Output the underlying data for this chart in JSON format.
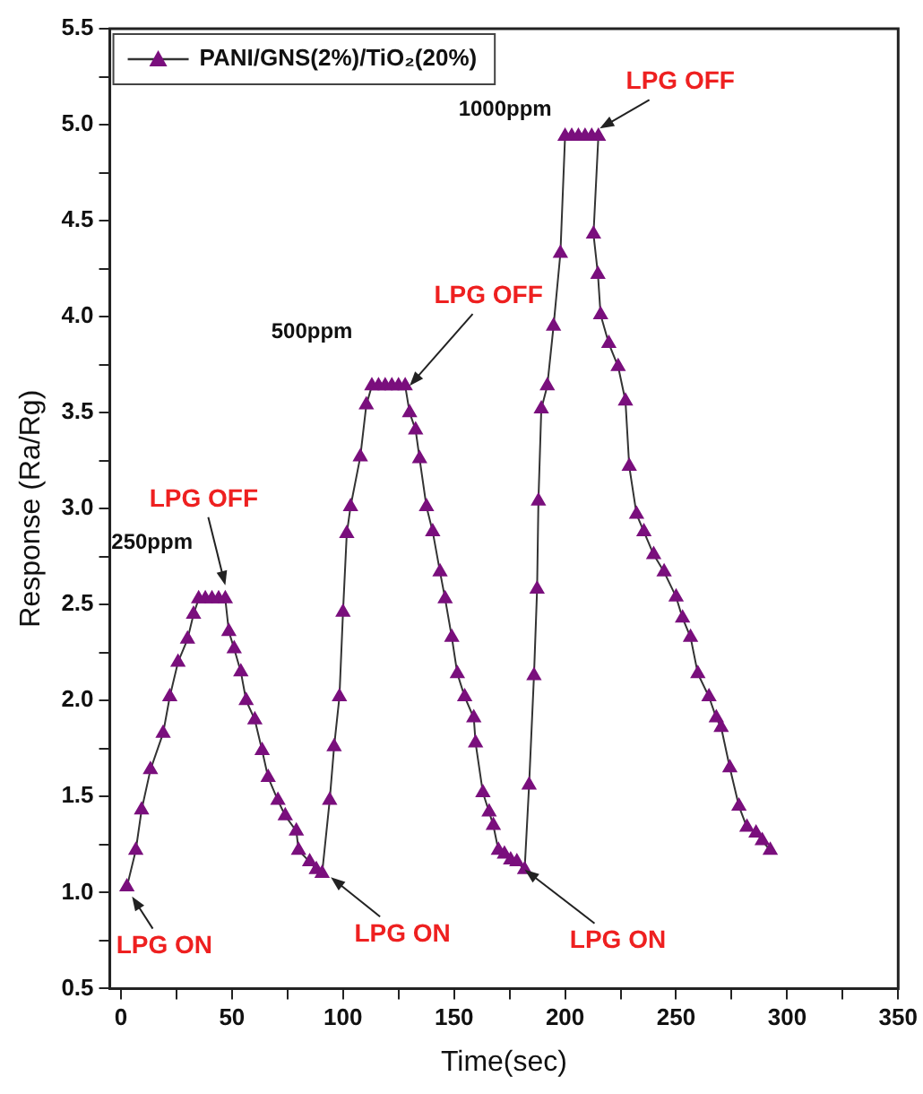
{
  "chart_data": {
    "type": "line",
    "xlabel": "Time(sec)",
    "ylabel": "Response (Ra/Rg)",
    "xlim": [
      -5,
      350
    ],
    "ylim": [
      0.5,
      5.5
    ],
    "xticks": [
      0,
      {
        "value": 25,
        "label": null
      },
      50,
      {
        "value": 75,
        "label": null
      },
      100,
      {
        "value": 125,
        "label": null
      },
      150,
      {
        "value": 175,
        "label": null
      },
      200,
      {
        "value": 225,
        "label": null
      },
      250,
      {
        "value": 275,
        "label": null
      },
      300,
      {
        "value": 325,
        "label": null
      },
      350
    ],
    "yticks": [
      {
        "value": 0.5,
        "label": "0.5"
      },
      {
        "value": 0.75,
        "label": null
      },
      {
        "value": 1,
        "label": "1.0"
      },
      {
        "value": 1.25,
        "label": null
      },
      {
        "value": 1.5,
        "label": "1.5"
      },
      {
        "value": 1.75,
        "label": null
      },
      {
        "value": 2,
        "label": "2.0"
      },
      {
        "value": 2.25,
        "label": null
      },
      {
        "value": 2.5,
        "label": "2.5"
      },
      {
        "value": 2.75,
        "label": null
      },
      {
        "value": 3,
        "label": "3.0"
      },
      {
        "value": 3.25,
        "label": null
      },
      {
        "value": 3.5,
        "label": "3.5"
      },
      {
        "value": 3.75,
        "label": null
      },
      {
        "value": 4,
        "label": "4.0"
      },
      {
        "value": 4.25,
        "label": null
      },
      {
        "value": 4.5,
        "label": "4.5"
      },
      {
        "value": 4.75,
        "label": null
      },
      {
        "value": 5,
        "label": "5.0"
      },
      {
        "value": 5.25,
        "label": null
      },
      {
        "value": 5.5,
        "label": "5.5"
      }
    ],
    "legend": "top left",
    "marker": "triangle",
    "line_style": "solid",
    "grid": false,
    "series": [
      {
        "name": "PANI/GNS(2%)/TiO₂(20%)",
        "color": "#7a0f7d",
        "x": [
          2.7,
          6.7,
          9.3,
          13.3,
          19,
          22,
          25.7,
          30,
          32.7,
          35,
          38,
          41,
          44,
          47,
          48.6,
          51,
          54,
          56.4,
          60.3,
          63.6,
          66.3,
          70.7,
          74,
          79,
          80,
          85,
          88,
          90.6,
          94,
          96,
          98.4,
          100,
          101.7,
          103.4,
          107.8,
          110.5,
          113,
          116,
          119,
          122,
          125,
          128,
          130,
          132.7,
          134.5,
          137.6,
          140.4,
          143.7,
          146,
          149,
          151.5,
          154.8,
          158.9,
          159.7,
          163,
          165.8,
          167.7,
          170,
          172.7,
          175.5,
          178.3,
          181.8,
          183.8,
          186,
          187.4,
          188,
          189.3,
          192,
          194.8,
          197.9,
          200,
          203,
          206,
          209,
          212,
          215,
          212.8,
          214.8,
          216,
          219.7,
          223.9,
          227.2,
          228.9,
          232.2,
          235.5,
          239.9,
          244.6,
          250,
          252.9,
          256.5,
          259.8,
          264.8,
          268.1,
          270.3,
          274.2,
          278.3,
          281.9,
          286,
          288.8,
          292.4
        ],
        "values": [
          1.03,
          1.22,
          1.43,
          1.64,
          1.83,
          2.02,
          2.2,
          2.32,
          2.45,
          2.53,
          2.53,
          2.53,
          2.53,
          2.53,
          2.36,
          2.27,
          2.15,
          2.0,
          1.9,
          1.74,
          1.6,
          1.48,
          1.4,
          1.32,
          1.22,
          1.16,
          1.12,
          1.1,
          1.48,
          1.76,
          2.02,
          2.46,
          2.87,
          3.01,
          3.27,
          3.54,
          3.64,
          3.64,
          3.64,
          3.64,
          3.64,
          3.64,
          3.5,
          3.41,
          3.26,
          3.01,
          2.88,
          2.67,
          2.53,
          2.33,
          2.14,
          2.02,
          1.91,
          1.78,
          1.52,
          1.42,
          1.35,
          1.22,
          1.2,
          1.17,
          1.16,
          1.12,
          1.56,
          2.13,
          2.58,
          3.04,
          3.52,
          3.64,
          3.95,
          4.33,
          4.94,
          4.94,
          4.94,
          4.94,
          4.94,
          4.94,
          4.43,
          4.22,
          4.01,
          3.86,
          3.74,
          3.56,
          3.22,
          2.97,
          2.88,
          2.76,
          2.67,
          2.54,
          2.43,
          2.33,
          2.14,
          2.02,
          1.91,
          1.86,
          1.65,
          1.45,
          1.34,
          1.31,
          1.27,
          1.22
        ]
      }
    ],
    "annotations": [
      "250ppm",
      {
        "text": "LPG OFF",
        "x": 47,
        "y": 2.6
      },
      "500ppm",
      {
        "text": "LPG OFF",
        "x": 130,
        "y": 3.64
      },
      "1000ppm",
      {
        "text": "LPG OFF",
        "x": 215.6,
        "y": 4.98
      },
      {
        "text": "LPG ON",
        "x": 5,
        "y": 0.98
      },
      {
        "text": "LPG ON",
        "x": 94.5,
        "y": 1.08
      },
      {
        "text": "LPG ON",
        "x": 181.8,
        "y": 1.12
      }
    ]
  }
}
